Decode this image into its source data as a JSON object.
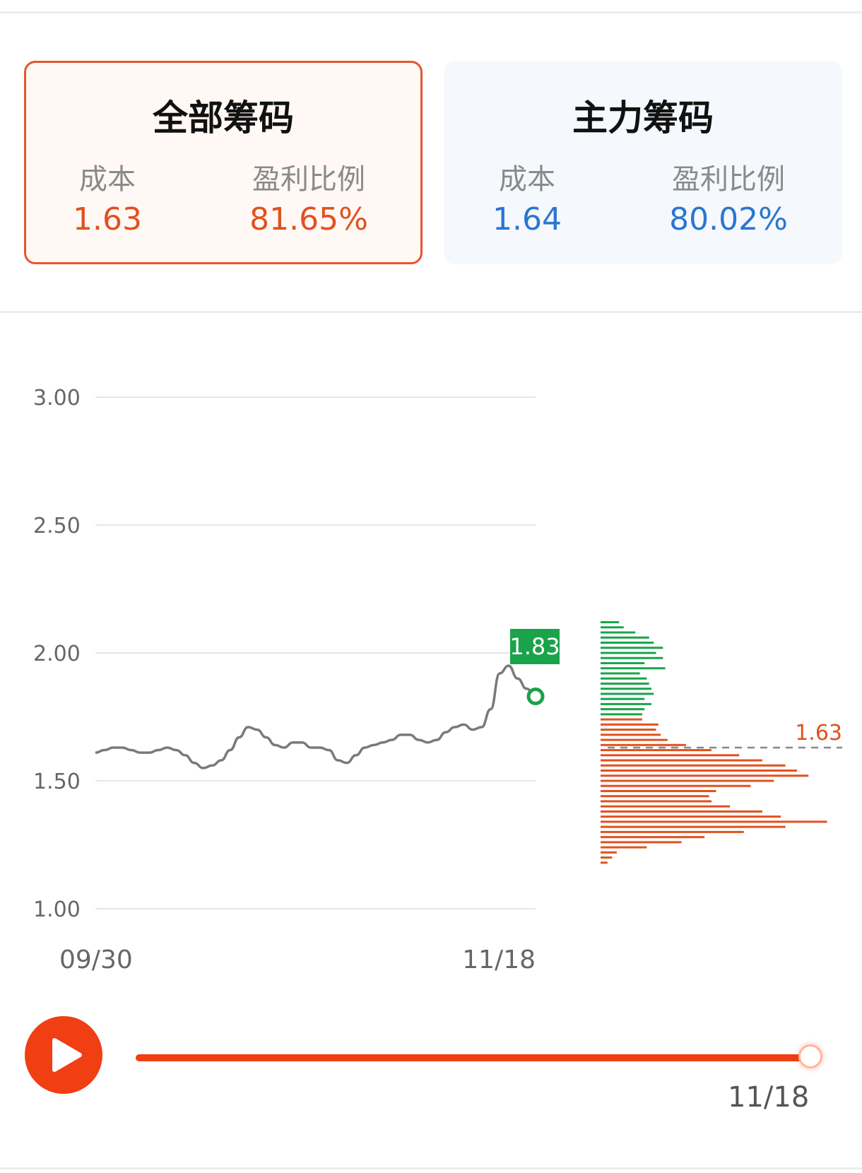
{
  "cards": {
    "all": {
      "title": "全部筹码",
      "cost_label": "成本",
      "cost": "1.63",
      "profit_label": "盈利比例",
      "profit": "81.65%"
    },
    "main": {
      "title": "主力筹码",
      "cost_label": "成本",
      "cost": "1.64",
      "profit_label": "盈利比例",
      "profit": "80.02%"
    }
  },
  "colors": {
    "accent": "#f03f12",
    "down_red": "#e0521f",
    "up_green": "#1aa34a",
    "blue": "#2a76d2",
    "line_gray": "#7a7a7a"
  },
  "chart_data": {
    "type": "line",
    "ylim": [
      1.0,
      3.0
    ],
    "yticks": [
      "3.00",
      "2.50",
      "2.00",
      "1.50",
      "1.00"
    ],
    "x_tick_labels": [
      "09/30",
      "11/18"
    ],
    "series": [
      {
        "values": [
          1.61,
          1.62,
          1.63,
          1.63,
          1.62,
          1.61,
          1.61,
          1.62,
          1.63,
          1.62,
          1.6,
          1.57,
          1.55,
          1.56,
          1.58,
          1.62,
          1.67,
          1.71,
          1.7,
          1.67,
          1.64,
          1.63,
          1.65,
          1.65,
          1.63,
          1.63,
          1.62,
          1.58,
          1.57,
          1.6,
          1.63,
          1.64,
          1.65,
          1.66,
          1.68,
          1.68,
          1.66,
          1.65,
          1.66,
          1.69,
          1.71,
          1.72,
          1.7,
          1.71,
          1.78,
          1.92,
          1.95,
          1.9,
          1.86,
          1.83
        ]
      }
    ],
    "last_price_label": "1.83",
    "cost_marker": {
      "value": 1.63,
      "label": "1.63"
    },
    "distribution": {
      "note_profit_below": "bars below 1.75 shown in red (profit), above in green",
      "split_price": 1.75,
      "levels": [
        {
          "price": 2.12,
          "v": 0.08
        },
        {
          "price": 2.1,
          "v": 0.1
        },
        {
          "price": 2.08,
          "v": 0.15
        },
        {
          "price": 2.06,
          "v": 0.21
        },
        {
          "price": 2.04,
          "v": 0.23
        },
        {
          "price": 2.02,
          "v": 0.27
        },
        {
          "price": 2.0,
          "v": 0.24
        },
        {
          "price": 1.98,
          "v": 0.27
        },
        {
          "price": 1.96,
          "v": 0.19
        },
        {
          "price": 1.94,
          "v": 0.28
        },
        {
          "price": 1.92,
          "v": 0.17
        },
        {
          "price": 1.9,
          "v": 0.2
        },
        {
          "price": 1.88,
          "v": 0.21
        },
        {
          "price": 1.86,
          "v": 0.22
        },
        {
          "price": 1.84,
          "v": 0.23
        },
        {
          "price": 1.82,
          "v": 0.19
        },
        {
          "price": 1.8,
          "v": 0.22
        },
        {
          "price": 1.78,
          "v": 0.19
        },
        {
          "price": 1.76,
          "v": 0.18
        },
        {
          "price": 1.74,
          "v": 0.18
        },
        {
          "price": 1.72,
          "v": 0.25
        },
        {
          "price": 1.7,
          "v": 0.24
        },
        {
          "price": 1.68,
          "v": 0.26
        },
        {
          "price": 1.66,
          "v": 0.29
        },
        {
          "price": 1.64,
          "v": 0.37
        },
        {
          "price": 1.62,
          "v": 0.48
        },
        {
          "price": 1.6,
          "v": 0.6
        },
        {
          "price": 1.58,
          "v": 0.7
        },
        {
          "price": 1.56,
          "v": 0.8
        },
        {
          "price": 1.54,
          "v": 0.85
        },
        {
          "price": 1.52,
          "v": 0.9
        },
        {
          "price": 1.5,
          "v": 0.75
        },
        {
          "price": 1.48,
          "v": 0.65
        },
        {
          "price": 1.46,
          "v": 0.5
        },
        {
          "price": 1.44,
          "v": 0.47
        },
        {
          "price": 1.42,
          "v": 0.48
        },
        {
          "price": 1.4,
          "v": 0.56
        },
        {
          "price": 1.38,
          "v": 0.7
        },
        {
          "price": 1.36,
          "v": 0.78
        },
        {
          "price": 1.34,
          "v": 0.98
        },
        {
          "price": 1.32,
          "v": 0.8
        },
        {
          "price": 1.3,
          "v": 0.62
        },
        {
          "price": 1.28,
          "v": 0.45
        },
        {
          "price": 1.26,
          "v": 0.35
        },
        {
          "price": 1.24,
          "v": 0.2
        },
        {
          "price": 1.22,
          "v": 0.07
        },
        {
          "price": 1.2,
          "v": 0.05
        },
        {
          "price": 1.18,
          "v": 0.03
        }
      ]
    }
  },
  "player": {
    "progress": 1.0,
    "date": "11/18",
    "play_icon": "play-icon"
  }
}
